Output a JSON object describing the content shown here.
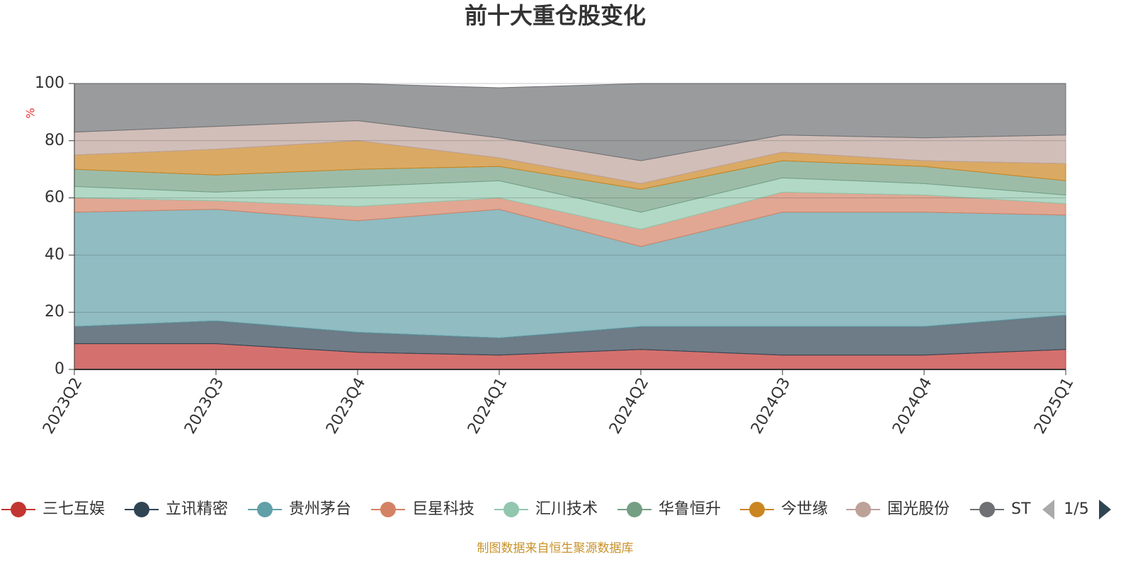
{
  "chart_data": {
    "type": "stacked_area",
    "title": "前十大重仓股变化",
    "y_axis_label": "%",
    "categories": [
      "2023Q2",
      "2023Q3",
      "2023Q4",
      "2024Q1",
      "2024Q2",
      "2024Q3",
      "2024Q4",
      "2025Q1"
    ],
    "series": [
      {
        "name": "三七互娱",
        "color": "#c23531",
        "values": [
          9,
          9,
          6,
          5,
          7,
          5,
          5,
          7
        ]
      },
      {
        "name": "立讯精密",
        "color": "#2f4554",
        "values": [
          6,
          8,
          7,
          6,
          8,
          10,
          10,
          12
        ]
      },
      {
        "name": "贵州茅台",
        "color": "#61a0a8",
        "values": [
          40,
          39,
          39,
          45,
          28,
          40,
          40,
          35
        ]
      },
      {
        "name": "巨星科技",
        "color": "#d48265",
        "values": [
          5,
          3,
          5,
          4,
          6,
          7,
          6,
          4
        ]
      },
      {
        "name": "汇川技术",
        "color": "#91c7ae",
        "values": [
          4,
          3,
          7,
          6,
          6,
          5,
          4,
          3
        ]
      },
      {
        "name": "华鲁恒升",
        "color": "#749f83",
        "values": [
          6,
          6,
          6,
          5,
          8,
          6,
          6,
          5
        ]
      },
      {
        "name": "今世缘",
        "color": "#ca8622",
        "values": [
          5,
          9,
          10,
          3,
          2,
          3,
          2,
          6
        ]
      },
      {
        "name": "国光股份",
        "color": "#bda29a",
        "values": [
          8,
          8,
          7,
          7,
          8,
          6,
          8,
          10
        ]
      },
      {
        "name": "ST",
        "color": "#6e7074",
        "values": [
          17,
          15,
          13,
          17.5,
          27,
          18,
          19,
          18
        ]
      }
    ],
    "ylim": [
      0,
      100
    ],
    "yticks": [
      0,
      20,
      40,
      60,
      80,
      100
    ],
    "grid": true,
    "legend_page": "1/5",
    "source": "制图数据来自恒生聚源数据库"
  }
}
